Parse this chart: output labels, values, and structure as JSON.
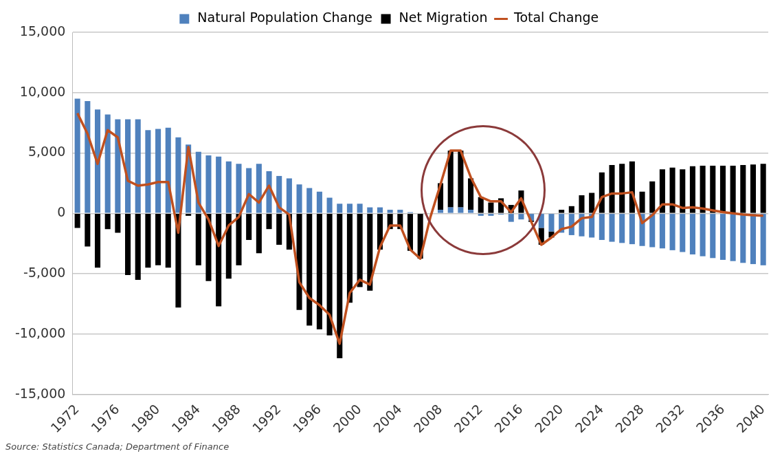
{
  "chart_data": {
    "type": "bar",
    "stacked": true,
    "legend": "top",
    "grid": "y",
    "marker": "none",
    "categories": [
      "1972",
      null,
      null,
      null,
      "1976",
      null,
      null,
      null,
      "1980",
      null,
      null,
      null,
      "1984",
      null,
      null,
      null,
      "1988",
      null,
      null,
      null,
      "1992",
      null,
      null,
      null,
      "1996",
      null,
      null,
      null,
      "2000",
      null,
      null,
      null,
      "2004",
      null,
      null,
      null,
      "2008",
      null,
      null,
      null,
      "2012",
      null,
      null,
      null,
      "2016",
      null,
      null,
      null,
      "2020",
      null,
      null,
      null,
      "2024",
      null,
      null,
      null,
      "2028",
      null,
      null,
      null,
      "2032",
      null,
      null,
      null,
      "2036",
      null,
      null,
      null,
      "2040"
    ],
    "ylim": [
      -15000,
      15000
    ],
    "yticks": [
      {
        "value": -15000,
        "label": "-15,000"
      },
      {
        "value": -10000,
        "label": "-10,000"
      },
      {
        "value": -5000,
        "label": "-5,000"
      },
      0,
      {
        "value": 5000,
        "label": "5,000"
      },
      {
        "value": 10000,
        "label": "10,000"
      },
      {
        "value": 15000,
        "label": "15,000"
      }
    ],
    "series": [
      {
        "name": "Natural Population Change",
        "color": "#4f81bd",
        "values": [
          9500,
          9300,
          8600,
          8200,
          7800,
          7800,
          7800,
          6900,
          7000,
          7100,
          6300,
          5700,
          5100,
          4800,
          4700,
          4300,
          4100,
          3750,
          4100,
          3500,
          3100,
          2900,
          2400,
          2100,
          1800,
          1300,
          800,
          800,
          800,
          500,
          500,
          300,
          300,
          100,
          0,
          0,
          300,
          500,
          500,
          300,
          -200,
          -200,
          -100,
          -700,
          -500,
          -600,
          -1200,
          -1500,
          -1600,
          -1800,
          -1900,
          -2000,
          -2200,
          -2350,
          -2450,
          -2550,
          -2700,
          -2800,
          -2900,
          -3050,
          -3200,
          -3400,
          -3550,
          -3700,
          -3850,
          -3950,
          -4100,
          -4200,
          -4300
        ]
      },
      {
        "name": "Net Migration",
        "color": "#000000",
        "values": [
          -1200,
          -2750,
          -4500,
          -1300,
          -1600,
          -5100,
          -5500,
          -4500,
          -4300,
          -4500,
          -7800,
          -200,
          -4300,
          -5600,
          -7700,
          -5400,
          -4300,
          -2200,
          -3300,
          -1300,
          -2600,
          -3000,
          -8000,
          -9300,
          -9600,
          -10100,
          -12000,
          -7400,
          -6100,
          -6400,
          -3000,
          -1300,
          -1300,
          -3100,
          -3750,
          null,
          2200,
          4700,
          4700,
          2600,
          1350,
          900,
          1250,
          700,
          1900,
          -100,
          -1400,
          -500,
          300,
          600,
          1500,
          1700,
          3400,
          4000,
          4100,
          4300,
          1800,
          2650,
          3650,
          3800,
          3650,
          3900,
          3950,
          3950,
          3950,
          3950,
          4000,
          4050,
          4100
        ]
      },
      {
        "name": "Total Change",
        "type": "line",
        "color": "#c0501f",
        "values": [
          8300,
          6600,
          4100,
          6900,
          6300,
          2700,
          2300,
          2400,
          2600,
          2600,
          -1600,
          5500,
          900,
          -500,
          -2700,
          -1000,
          -300,
          1600,
          900,
          2300,
          500,
          -100,
          -5700,
          -7000,
          -7600,
          -8400,
          -10800,
          -6600,
          -5500,
          -5900,
          -2800,
          -1000,
          -1000,
          -3000,
          -3750,
          -300,
          2400,
          5200,
          5200,
          3000,
          1350,
          1000,
          1000,
          100,
          1250,
          -700,
          -2600,
          -2000,
          -1300,
          -1100,
          -400,
          -300,
          1350,
          1650,
          1650,
          1750,
          -800,
          -150,
          750,
          750,
          450,
          500,
          400,
          250,
          100,
          0,
          -100,
          -150,
          -200
        ]
      }
    ],
    "annotations": [
      "Source: Statistics Canada; Department of Finance"
    ]
  }
}
